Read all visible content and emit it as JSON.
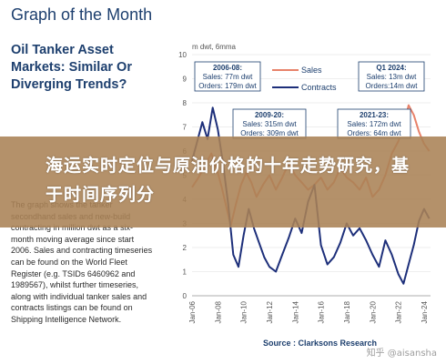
{
  "page_title": "Graph of the Month",
  "chart_heading": "Oil Tanker Asset Markets: Similar Or Diverging Trends?",
  "description": "The graph shows the tanker secondhand sales and new-build contracting in million dwt as a six-month moving average since start 2006. Sales and contracting timeseries can be found on the World Fleet Register (e.g. TSIDs 6460962 and 1989567), whilst further timeseries, along with individual tanker sales and contracts listings can be found on Shipping Intelligence Network.",
  "overlay_banner": "海运实时定位与原油价格的十年走势研究，基于时间序列分",
  "watermark": "知乎 @aisansha",
  "chart_data": {
    "type": "line",
    "unit_label": "m dwt, 6mma",
    "ylim": [
      0,
      10
    ],
    "yticks": [
      "0",
      "1",
      "2",
      "3",
      "4",
      "5",
      "6",
      "7",
      "8",
      "9",
      "10"
    ],
    "xticks": [
      "Jan-06",
      "Jan-08",
      "Jan-10",
      "Jan-12",
      "Jan-14",
      "Jan-16",
      "Jan-18",
      "Jan-20",
      "Jan-22",
      "Jan-24"
    ],
    "x_start_year": 2006,
    "x_end_year": 2024.5,
    "source": "Source : Clarksons Research",
    "legend": [
      {
        "label": "Sales",
        "color": "#e8826a"
      },
      {
        "label": "Contracts",
        "color": "#1d2f7a"
      }
    ],
    "series": [
      {
        "name": "Sales",
        "color": "#e8826a",
        "x": [
          2006.0,
          2006.5,
          2007.0,
          2007.5,
          2008.0,
          2008.3,
          2008.7,
          2009.0,
          2009.4,
          2009.8,
          2010.2,
          2010.6,
          2011.0,
          2011.5,
          2012.0,
          2012.5,
          2013.0,
          2013.5,
          2014.0,
          2014.5,
          2015.0,
          2015.5,
          2016.0,
          2016.5,
          2017.0,
          2017.5,
          2018.0,
          2018.5,
          2019.0,
          2019.5,
          2020.0,
          2020.5,
          2021.0,
          2021.5,
          2022.0,
          2022.5,
          2022.8,
          2023.2,
          2023.6,
          2024.0,
          2024.4
        ],
        "y": [
          4.5,
          4.9,
          5.4,
          5.9,
          5.1,
          4.5,
          3.6,
          2.9,
          3.8,
          4.6,
          5.1,
          4.7,
          4.1,
          4.6,
          5.0,
          4.4,
          4.9,
          5.5,
          5.0,
          4.7,
          4.4,
          4.6,
          4.9,
          4.4,
          4.7,
          5.3,
          4.9,
          4.7,
          4.4,
          4.9,
          4.1,
          4.4,
          5.0,
          5.9,
          6.4,
          7.2,
          7.9,
          7.5,
          6.8,
          6.3,
          6.0
        ]
      },
      {
        "name": "Contracts",
        "color": "#1d2f7a",
        "x": [
          2006.0,
          2006.4,
          2006.8,
          2007.2,
          2007.6,
          2008.0,
          2008.4,
          2008.8,
          2009.2,
          2009.6,
          2010.0,
          2010.4,
          2010.8,
          2011.2,
          2011.6,
          2012.0,
          2012.5,
          2013.0,
          2013.5,
          2014.0,
          2014.5,
          2015.0,
          2015.5,
          2016.0,
          2016.5,
          2017.0,
          2017.5,
          2018.0,
          2018.5,
          2019.0,
          2019.5,
          2020.0,
          2020.5,
          2021.0,
          2021.5,
          2022.0,
          2022.4,
          2022.8,
          2023.2,
          2023.6,
          2024.0,
          2024.4
        ],
        "y": [
          5.6,
          6.4,
          7.2,
          6.5,
          7.8,
          6.9,
          5.5,
          3.8,
          1.7,
          1.2,
          2.5,
          3.6,
          2.8,
          2.2,
          1.6,
          1.2,
          1.0,
          1.7,
          2.4,
          3.2,
          2.6,
          3.9,
          4.6,
          2.1,
          1.3,
          1.6,
          2.2,
          3.0,
          2.5,
          2.8,
          2.3,
          1.7,
          1.2,
          2.3,
          1.7,
          0.9,
          0.5,
          1.3,
          2.1,
          3.1,
          3.6,
          3.2
        ]
      }
    ],
    "annotations": [
      {
        "title": "2006-08:",
        "lines": [
          "Sales: 77m dwt",
          "Orders: 179m dwt"
        ]
      },
      {
        "title": "Q1 2024:",
        "lines": [
          "Sales: 13m dwt",
          "Orders:14m dwt"
        ]
      },
      {
        "title": "2009-20:",
        "lines": [
          "Sales: 315m dwt",
          "Orders: 309m dwt"
        ]
      },
      {
        "title": "2021-23:",
        "lines": [
          "Sales: 172m dwt",
          "Orders: 64m dwt"
        ]
      }
    ]
  }
}
